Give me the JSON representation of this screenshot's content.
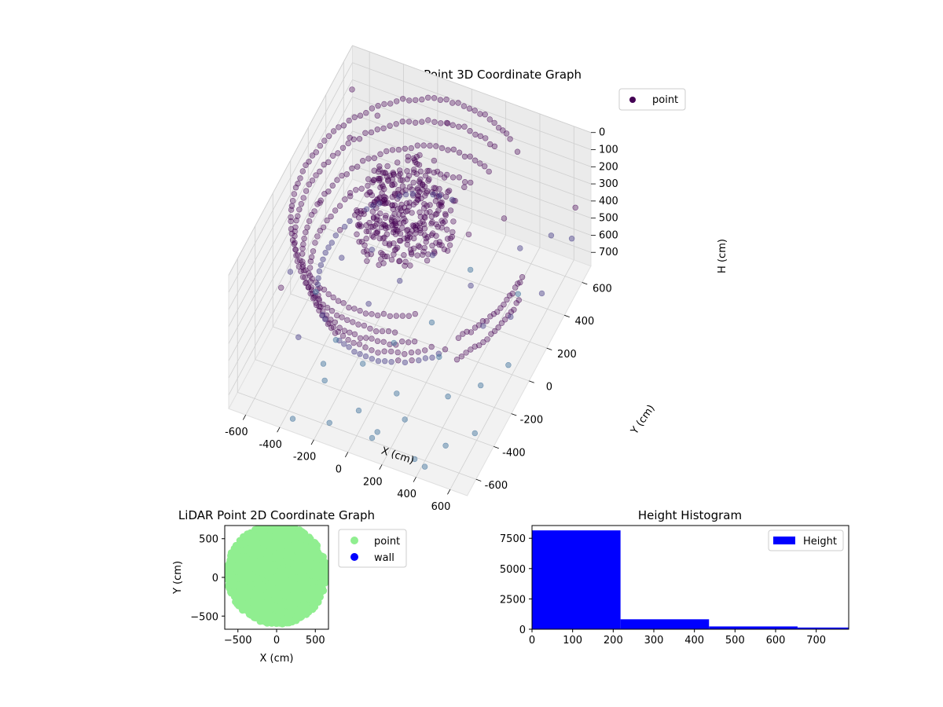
{
  "chart_data": [
    {
      "type": "scatter",
      "projection": "3d",
      "title": "LiDAR Point 3D Coordinate Graph",
      "xlabel": "X (cm)",
      "ylabel": "Y (cm)",
      "zlabel": "H (cm)",
      "xlim": [
        -700,
        700
      ],
      "ylim": [
        -700,
        700
      ],
      "zlim": [
        0,
        780
      ],
      "z_inverted": true,
      "x_ticks": [
        -600,
        -400,
        -200,
        0,
        200,
        400,
        600
      ],
      "y_ticks": [
        -600,
        -400,
        -200,
        0,
        200,
        400,
        600
      ],
      "z_ticks": [
        0,
        100,
        200,
        300,
        400,
        500,
        600,
        700
      ],
      "grid": true,
      "legend": {
        "placement": "top-right",
        "entries": [
          {
            "label": "point",
            "color": "#440154"
          }
        ]
      },
      "series": [
        {
          "name": "point",
          "color": "#440154",
          "rings": [
            {
              "r": 620,
              "h": 10,
              "count": 80,
              "ang_start": 60,
              "ang_end": 300
            },
            {
              "r": 600,
              "h": 120,
              "count": 70,
              "ang_start": 70,
              "ang_end": 290
            },
            {
              "r": 560,
              "h": 230,
              "count": 70,
              "ang_start": 70,
              "ang_end": 300
            },
            {
              "r": 520,
              "h": 330,
              "count": 60,
              "ang_start": 80,
              "ang_end": 310
            },
            {
              "r": 480,
              "h": 420,
              "count": 55,
              "ang_start": 90,
              "ang_end": 320
            },
            {
              "r": 660,
              "h": 180,
              "count": 20,
              "ang_start": 320,
              "ang_end": 360
            },
            {
              "r": 640,
              "h": 320,
              "count": 18,
              "ang_start": 320,
              "ang_end": 360
            }
          ],
          "core": {
            "center": [
              -50,
              50
            ],
            "radius": 260,
            "h_range": [
              0,
              250
            ],
            "count": 320
          },
          "scatter_points": [
            [
              -620,
              -560,
              650
            ],
            [
              -600,
              -300,
              420
            ],
            [
              -580,
              100,
              300
            ],
            [
              -560,
              400,
              200
            ],
            [
              -520,
              -620,
              720
            ],
            [
              -500,
              -100,
              600
            ],
            [
              -480,
              250,
              350
            ],
            [
              -460,
              520,
              150
            ],
            [
              -420,
              -450,
              500
            ],
            [
              -400,
              0,
              460
            ],
            [
              -380,
              330,
              260
            ],
            [
              -350,
              -650,
              760
            ],
            [
              -320,
              -220,
              700
            ],
            [
              -300,
              150,
              520
            ],
            [
              -260,
              480,
              300
            ],
            [
              -240,
              -500,
              640
            ],
            [
              -200,
              -80,
              580
            ],
            [
              -180,
              280,
              420
            ],
            [
              -150,
              -620,
              740
            ],
            [
              -120,
              -300,
              690
            ],
            [
              -90,
              60,
              540
            ],
            [
              -60,
              420,
              380
            ],
            [
              -30,
              -520,
              720
            ],
            [
              0,
              -180,
              640
            ],
            [
              30,
              200,
              480
            ],
            [
              60,
              500,
              360
            ],
            [
              90,
              -600,
              760
            ],
            [
              120,
              -380,
              700
            ],
            [
              150,
              -40,
              600
            ],
            [
              180,
              320,
              420
            ],
            [
              220,
              -480,
              720
            ],
            [
              250,
              -150,
              660
            ],
            [
              280,
              150,
              520
            ],
            [
              320,
              450,
              400
            ],
            [
              350,
              -620,
              770
            ],
            [
              380,
              -300,
              700
            ],
            [
              420,
              20,
              580
            ],
            [
              450,
              380,
              460
            ],
            [
              480,
              -520,
              740
            ],
            [
              520,
              -200,
              680
            ],
            [
              540,
              100,
              560
            ],
            [
              560,
              520,
              480
            ],
            [
              600,
              -420,
              720
            ],
            [
              620,
              -80,
              640
            ],
            [
              640,
              260,
              540
            ],
            [
              660,
              560,
              500
            ],
            [
              -640,
              580,
              120
            ],
            [
              -100,
              620,
              160
            ],
            [
              300,
              640,
              200
            ],
            [
              650,
              620,
              380
            ],
            [
              -660,
              -80,
              560
            ],
            [
              -300,
              -400,
              660
            ],
            [
              100,
              -560,
              760
            ],
            [
              420,
              -640,
              770
            ],
            [
              200,
              300,
              600
            ],
            [
              480,
              300,
              640
            ]
          ]
        }
      ]
    },
    {
      "type": "scatter",
      "title": "LiDAR Point 2D Coordinate Graph",
      "xlabel": "X (cm)",
      "ylabel": "Y (cm)",
      "xlim": [
        -670,
        670
      ],
      "ylim": [
        -670,
        670
      ],
      "x_ticks": [
        -500,
        0,
        500
      ],
      "y_ticks": [
        -500,
        0,
        500
      ],
      "grid": false,
      "legend": {
        "placement": "outside-right",
        "entries": [
          {
            "label": "point",
            "color": "#90ee90"
          },
          {
            "label": "wall",
            "color": "#0000ff"
          }
        ]
      },
      "series": [
        {
          "name": "point",
          "color": "#90ee90",
          "region": {
            "center": [
              0,
              40
            ],
            "radius": 650,
            "count": 1400
          }
        },
        {
          "name": "wall",
          "color": "#0000ff",
          "points": []
        }
      ]
    },
    {
      "type": "bar",
      "subtype": "histogram",
      "title": "Height Histogram",
      "xlabel": "",
      "ylabel": "",
      "xlim": [
        0,
        780
      ],
      "ylim": [
        0,
        8550
      ],
      "x_ticks": [
        0,
        100,
        200,
        300,
        400,
        500,
        600,
        700
      ],
      "y_ticks": [
        0,
        2500,
        5000,
        7500
      ],
      "grid": false,
      "legend": {
        "placement": "top-right",
        "entries": [
          {
            "label": "Height",
            "color": "#0000ff"
          }
        ]
      },
      "series": [
        {
          "name": "Height",
          "color": "#0000ff",
          "bins": [
            {
              "start": 0,
              "end": 218,
              "count": 8150
            },
            {
              "start": 218,
              "end": 436,
              "count": 820
            },
            {
              "start": 436,
              "end": 654,
              "count": 230
            },
            {
              "start": 654,
              "end": 780,
              "count": 140
            }
          ]
        }
      ]
    }
  ]
}
